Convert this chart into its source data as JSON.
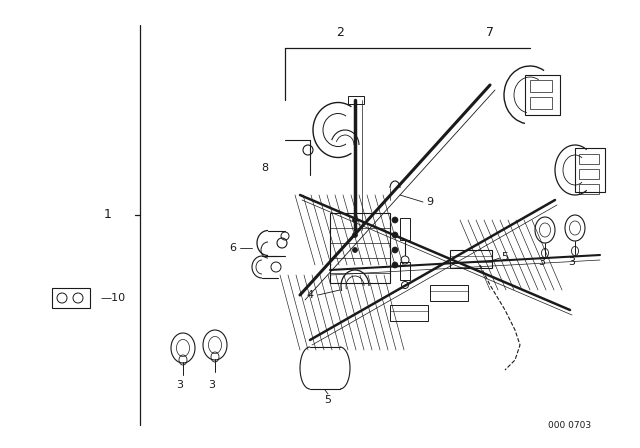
{
  "bg_color": "#ffffff",
  "line_color": "#1a1a1a",
  "fig_width": 6.4,
  "fig_height": 4.48,
  "watermark": "000 0703",
  "dpi": 100
}
